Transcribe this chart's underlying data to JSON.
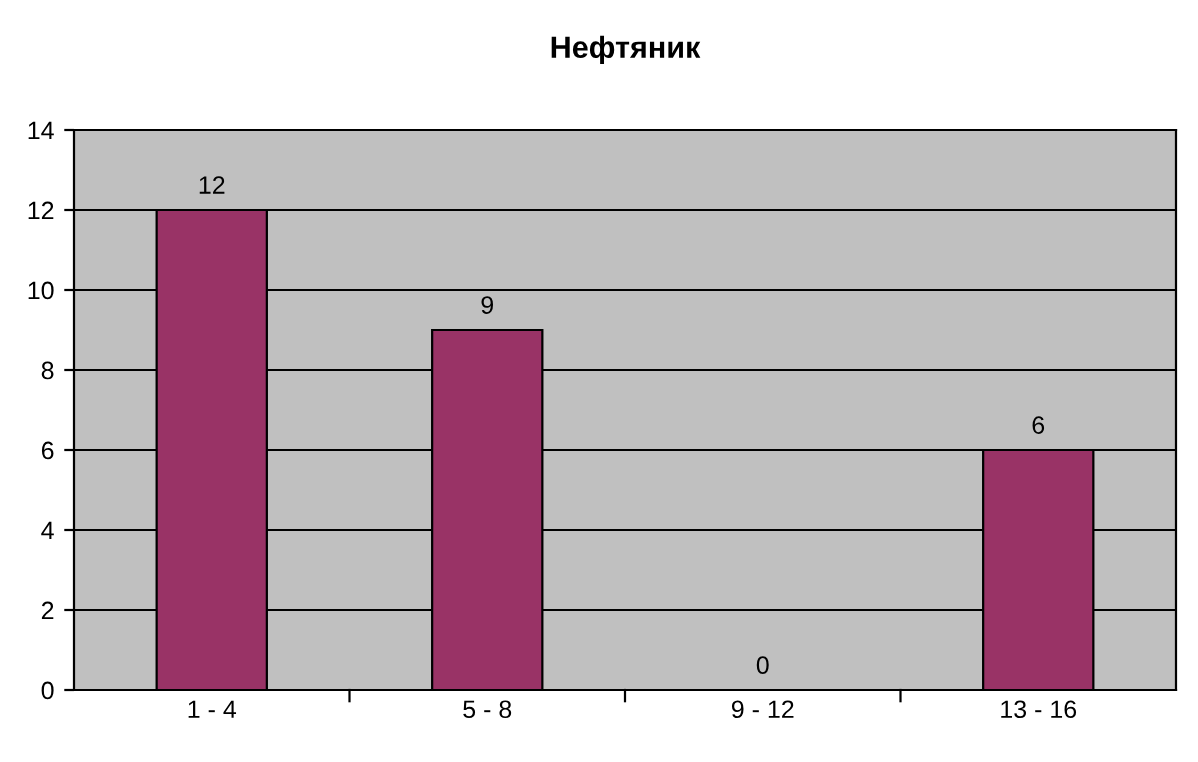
{
  "chart_data": {
    "type": "bar",
    "title": "Нефтяник",
    "categories": [
      "1 - 4",
      "5 - 8",
      "9 - 12",
      "13 - 16"
    ],
    "values": [
      12,
      9,
      0,
      6
    ],
    "color": "#993366",
    "ylim": [
      0,
      14
    ],
    "yticks": [
      0,
      2,
      4,
      6,
      8,
      10,
      12,
      14
    ],
    "grid": "y",
    "data_labels": true
  }
}
